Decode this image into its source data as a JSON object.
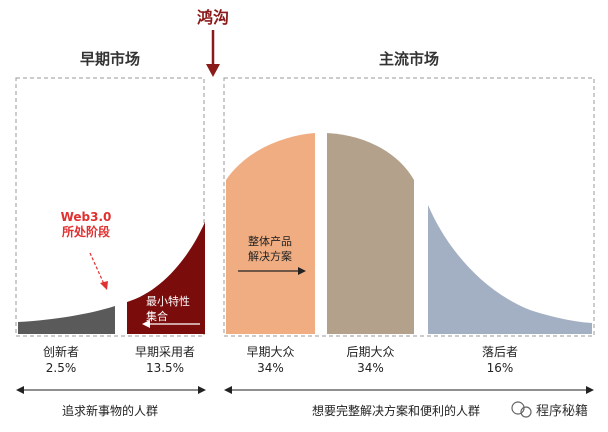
{
  "chasm": {
    "label": "鸿沟"
  },
  "markets": {
    "early": "早期市场",
    "mainstream": "主流市场"
  },
  "annotations": {
    "web3": "Web3.0\n所处阶段",
    "whole_product": "整体产品\n解决方案",
    "mvp": "最小特性\n集合"
  },
  "segments": [
    {
      "name": "创新者",
      "percent": "2.5%",
      "color": "#5a5a5a"
    },
    {
      "name": "早期采用者",
      "percent": "13.5%",
      "color": "#7b0c0c"
    },
    {
      "name": "早期大众",
      "percent": "34%",
      "color": "#f0ad82"
    },
    {
      "name": "后期大众",
      "percent": "34%",
      "color": "#b3a18b"
    },
    {
      "name": "落后者",
      "percent": "16%",
      "color": "#a3afc2"
    }
  ],
  "bottom": {
    "left": "追求新事物的人群",
    "right": "想要完整解决方案和便利的人群"
  },
  "watermark": "程序秘籍",
  "colors": {
    "chasm_red": "#8b1a1a",
    "web3_red": "#e03030",
    "dash_gray": "#999999"
  }
}
